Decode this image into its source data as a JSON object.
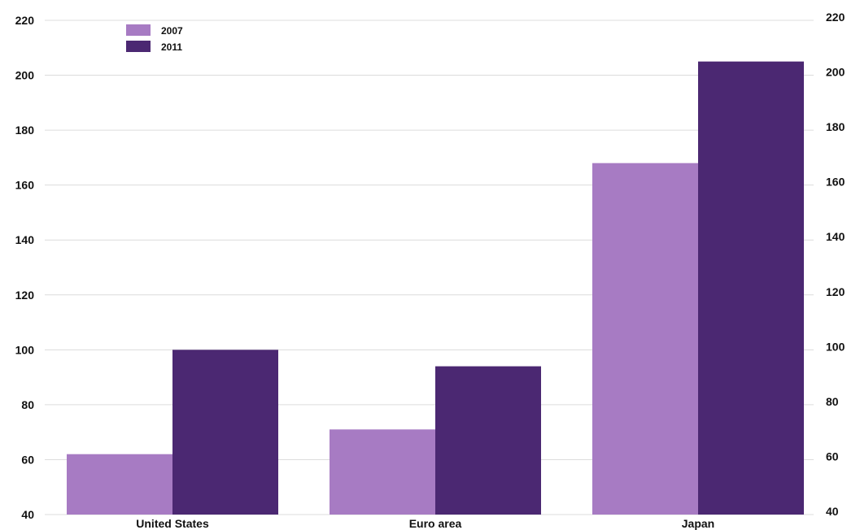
{
  "chart_data": {
    "type": "bar",
    "categories": [
      "United States",
      "Euro area",
      "Japan"
    ],
    "series": [
      {
        "name": "2007",
        "values": [
          62,
          71,
          168
        ],
        "color": "#a77bc3"
      },
      {
        "name": "2011",
        "values": [
          100,
          94,
          205
        ],
        "color": "#4b2872"
      }
    ],
    "ylim_left": [
      40,
      220
    ],
    "yticks_left": [
      40,
      60,
      80,
      100,
      120,
      140,
      160,
      180,
      200,
      220
    ],
    "ylim_right": [
      40,
      220
    ],
    "yticks_right": [
      40,
      60,
      80,
      100,
      120,
      140,
      160,
      180,
      200,
      220
    ],
    "grid": true,
    "legend": "top-left",
    "title": "",
    "xlabel": "",
    "ylabel": ""
  }
}
